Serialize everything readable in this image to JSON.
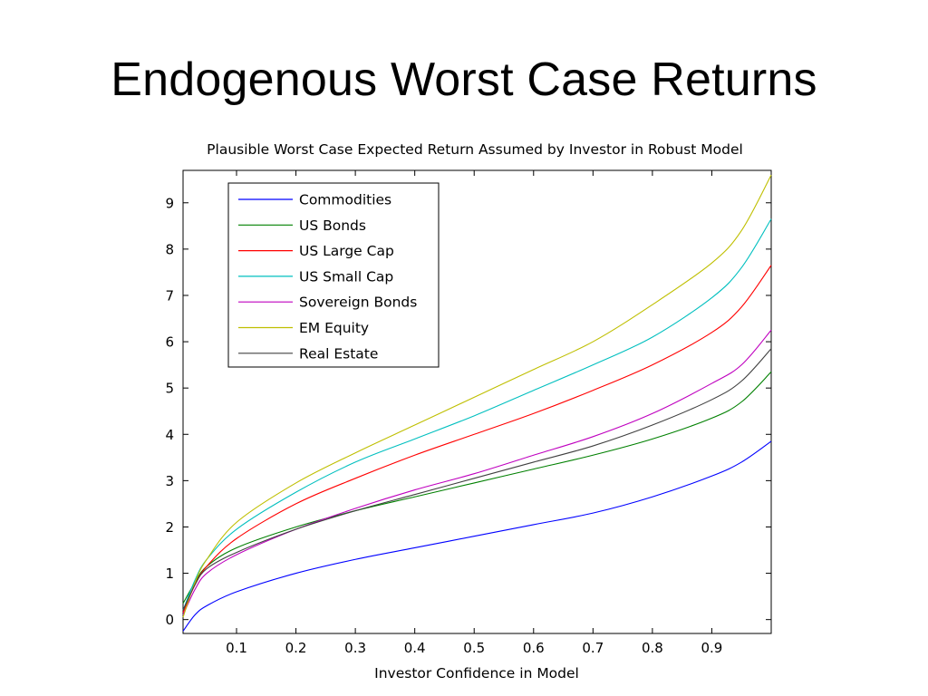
{
  "slide": {
    "title": "Endogenous Worst Case Returns"
  },
  "chart_data": {
    "type": "line",
    "title": "Plausible Worst Case Expected Return Assumed by Investor in Robust Model",
    "xlabel": "Investor Confidence in Model",
    "ylabel": "",
    "xlim": [
      0.01,
      1.0
    ],
    "ylim": [
      -0.3,
      9.7
    ],
    "xticks": [
      0.1,
      0.2,
      0.3,
      0.4,
      0.5,
      0.6,
      0.7,
      0.8,
      0.9
    ],
    "yticks": [
      0,
      1,
      2,
      3,
      4,
      5,
      6,
      7,
      8,
      9
    ],
    "grid": false,
    "legend_position": "top-left",
    "x": [
      0.01,
      0.03,
      0.05,
      0.1,
      0.2,
      0.3,
      0.4,
      0.5,
      0.6,
      0.7,
      0.8,
      0.9,
      0.95,
      1.0
    ],
    "series": [
      {
        "name": "Commodities",
        "color": "#0000ff",
        "values": [
          -0.25,
          0.1,
          0.3,
          0.6,
          1.0,
          1.3,
          1.55,
          1.8,
          2.05,
          2.3,
          2.65,
          3.1,
          3.4,
          3.85
        ]
      },
      {
        "name": "US Bonds",
        "color": "#008000",
        "values": [
          0.35,
          0.8,
          1.15,
          1.55,
          2.0,
          2.35,
          2.65,
          2.95,
          3.25,
          3.55,
          3.9,
          4.35,
          4.7,
          5.35
        ]
      },
      {
        "name": "US Large Cap",
        "color": "#ff0000",
        "values": [
          0.15,
          0.75,
          1.15,
          1.75,
          2.5,
          3.05,
          3.55,
          4.0,
          4.45,
          4.95,
          5.5,
          6.2,
          6.75,
          7.65
        ]
      },
      {
        "name": "US Small Cap",
        "color": "#00bfbf",
        "values": [
          0.2,
          0.85,
          1.3,
          1.95,
          2.75,
          3.4,
          3.9,
          4.4,
          4.95,
          5.5,
          6.1,
          6.95,
          7.6,
          8.65
        ]
      },
      {
        "name": "Sovereign Bonds",
        "color": "#bf00bf",
        "values": [
          0.1,
          0.65,
          1.0,
          1.4,
          1.95,
          2.4,
          2.8,
          3.15,
          3.55,
          3.95,
          4.45,
          5.1,
          5.5,
          6.25
        ]
      },
      {
        "name": "EM Equity",
        "color": "#bfbf00",
        "values": [
          0.05,
          0.8,
          1.3,
          2.1,
          2.95,
          3.6,
          4.2,
          4.8,
          5.4,
          6.0,
          6.8,
          7.7,
          8.4,
          9.6
        ]
      },
      {
        "name": "Real Estate",
        "color": "#404040",
        "values": [
          0.2,
          0.75,
          1.1,
          1.45,
          1.95,
          2.35,
          2.7,
          3.05,
          3.4,
          3.75,
          4.2,
          4.75,
          5.15,
          5.85
        ]
      }
    ]
  }
}
